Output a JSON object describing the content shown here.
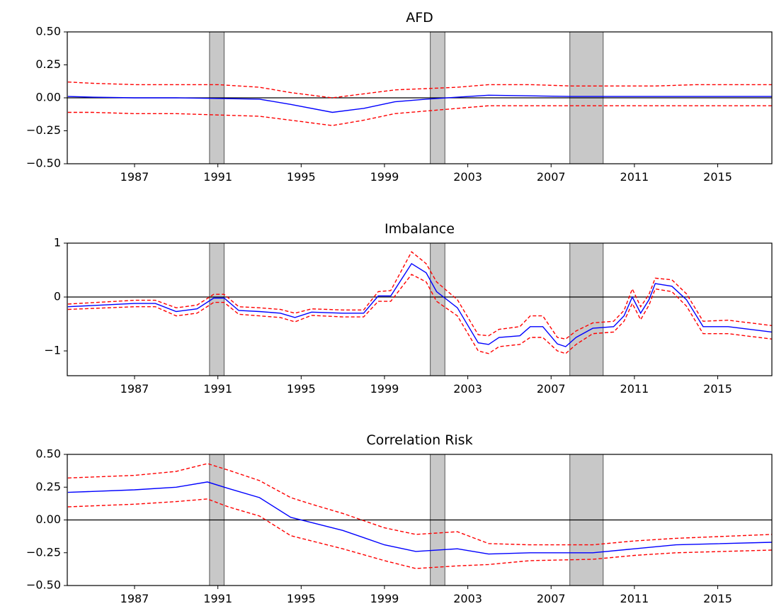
{
  "chart_data": [
    {
      "type": "line",
      "title": "AFD",
      "x": [
        1983.8,
        1985,
        1987,
        1989,
        1991,
        1993,
        1994.5,
        1996.5,
        1998,
        1999.5,
        2001,
        2002.5,
        2004,
        2006,
        2008,
        2010,
        2012,
        2014,
        2016,
        2017.6
      ],
      "series": [
        {
          "color": "#0000ff",
          "dashed": false,
          "values": [
            0.01,
            0.005,
            0,
            0,
            -0.005,
            -0.01,
            -0.05,
            -0.11,
            -0.08,
            -0.03,
            -0.01,
            0.005,
            0.02,
            0.015,
            0.01,
            0.01,
            0.01,
            0.01,
            0.01,
            0.01
          ]
        },
        {
          "color": "#ff0000",
          "dashed": true,
          "values": [
            0.12,
            0.11,
            0.1,
            0.1,
            0.1,
            0.08,
            0.04,
            0.0,
            0.03,
            0.06,
            0.07,
            0.08,
            0.1,
            0.1,
            0.09,
            0.09,
            0.09,
            0.1,
            0.1,
            0.1
          ]
        },
        {
          "color": "#ff0000",
          "dashed": true,
          "values": [
            -0.11,
            -0.11,
            -0.12,
            -0.12,
            -0.13,
            -0.14,
            -0.17,
            -0.21,
            -0.17,
            -0.12,
            -0.1,
            -0.08,
            -0.06,
            -0.06,
            -0.06,
            -0.06,
            -0.06,
            -0.06,
            -0.06,
            -0.06
          ]
        }
      ],
      "shaded": [
        [
          1990.6,
          1991.3
        ],
        [
          2001.2,
          2001.9
        ],
        [
          2007.9,
          2009.5
        ]
      ],
      "shade_color": "#c8c8c8",
      "hline": 0,
      "xlim": [
        1983.77,
        2017.6
      ],
      "xticks": [
        1987,
        1991,
        1995,
        1999,
        2003,
        2007,
        2011,
        2015
      ],
      "ylim": [
        -0.5,
        0.5
      ],
      "yticks": [
        {
          "value": -0.5,
          "label": "−0.50"
        },
        {
          "value": -0.25,
          "label": "−0.25"
        },
        {
          "value": 0,
          "label": "0.00"
        },
        {
          "value": 0.25,
          "label": "0.25"
        },
        {
          "value": 0.5,
          "label": "0.50"
        }
      ]
    },
    {
      "type": "line",
      "title": "Imbalance",
      "x": [
        1983.8,
        1987,
        1988,
        1989,
        1990,
        1990.8,
        1991.3,
        1992,
        1993,
        1994,
        1994.7,
        1995.5,
        1997,
        1998,
        1998.7,
        1999.3,
        2000.3,
        2001,
        2001.5,
        2002.5,
        2003.5,
        2004,
        2004.5,
        2005.5,
        2006,
        2006.6,
        2007.3,
        2007.7,
        2008.2,
        2009,
        2010,
        2010.5,
        2010.9,
        2011.3,
        2011.7,
        2012,
        2012.8,
        2013.5,
        2014.3,
        2015.5,
        2017.6
      ],
      "series": [
        {
          "color": "#0000ff",
          "dashed": false,
          "values": [
            -0.18,
            -0.12,
            -0.12,
            -0.27,
            -0.22,
            -0.02,
            -0.02,
            -0.25,
            -0.27,
            -0.3,
            -0.38,
            -0.28,
            -0.3,
            -0.3,
            0.02,
            0.02,
            0.62,
            0.45,
            0.1,
            -0.2,
            -0.85,
            -0.88,
            -0.75,
            -0.72,
            -0.55,
            -0.55,
            -0.87,
            -0.92,
            -0.75,
            -0.58,
            -0.55,
            -0.35,
            0.0,
            -0.3,
            -0.05,
            0.25,
            0.2,
            -0.05,
            -0.55,
            -0.55,
            -0.65
          ]
        },
        {
          "color": "#ff0000",
          "dashed": true,
          "values": [
            -0.13,
            -0.06,
            -0.06,
            -0.2,
            -0.15,
            0.05,
            0.05,
            -0.18,
            -0.2,
            -0.23,
            -0.3,
            -0.22,
            -0.24,
            -0.24,
            0.1,
            0.12,
            0.84,
            0.62,
            0.28,
            -0.05,
            -0.7,
            -0.72,
            -0.6,
            -0.55,
            -0.35,
            -0.35,
            -0.75,
            -0.78,
            -0.63,
            -0.48,
            -0.45,
            -0.25,
            0.15,
            -0.18,
            0.05,
            0.35,
            0.32,
            0.06,
            -0.45,
            -0.43,
            -0.53
          ]
        },
        {
          "color": "#ff0000",
          "dashed": true,
          "values": [
            -0.23,
            -0.18,
            -0.18,
            -0.35,
            -0.3,
            -0.1,
            -0.1,
            -0.32,
            -0.35,
            -0.38,
            -0.46,
            -0.34,
            -0.37,
            -0.37,
            -0.08,
            -0.08,
            0.42,
            0.28,
            -0.08,
            -0.35,
            -1.0,
            -1.05,
            -0.92,
            -0.88,
            -0.75,
            -0.75,
            -1.0,
            -1.05,
            -0.88,
            -0.68,
            -0.65,
            -0.45,
            -0.12,
            -0.42,
            -0.15,
            0.15,
            0.1,
            -0.17,
            -0.68,
            -0.68,
            -0.78
          ]
        }
      ],
      "shaded": [
        [
          1990.6,
          1991.3
        ],
        [
          2001.2,
          2001.9
        ],
        [
          2007.9,
          2009.5
        ]
      ],
      "shade_color": "#c8c8c8",
      "hline": 0,
      "xlim": [
        1983.77,
        2017.6
      ],
      "xticks": [
        1987,
        1991,
        1995,
        1999,
        2003,
        2007,
        2011,
        2015
      ],
      "ylim": [
        -1.46,
        1
      ],
      "yticks": [
        {
          "value": -1,
          "label": "−1"
        },
        0,
        1
      ]
    },
    {
      "type": "line",
      "title": "Correlation Risk",
      "x": [
        1983.8,
        1987,
        1989,
        1990.5,
        1991.5,
        1993,
        1994.5,
        1995.5,
        1997,
        1999,
        2000.5,
        2002.5,
        2004,
        2006,
        2009,
        2011,
        2013,
        2017.6
      ],
      "series": [
        {
          "color": "#0000ff",
          "dashed": false,
          "values": [
            0.21,
            0.23,
            0.25,
            0.29,
            0.24,
            0.17,
            0.02,
            -0.02,
            -0.08,
            -0.19,
            -0.24,
            -0.22,
            -0.26,
            -0.25,
            -0.25,
            -0.22,
            -0.19,
            -0.17
          ]
        },
        {
          "color": "#ff0000",
          "dashed": true,
          "values": [
            0.32,
            0.34,
            0.37,
            0.43,
            0.38,
            0.3,
            0.17,
            0.12,
            0.05,
            -0.06,
            -0.11,
            -0.09,
            -0.18,
            -0.19,
            -0.19,
            -0.16,
            -0.14,
            -0.11
          ]
        },
        {
          "color": "#ff0000",
          "dashed": true,
          "values": [
            0.1,
            0.12,
            0.14,
            0.16,
            0.1,
            0.03,
            -0.12,
            -0.16,
            -0.22,
            -0.31,
            -0.37,
            -0.35,
            -0.34,
            -0.31,
            -0.3,
            -0.27,
            -0.25,
            -0.23
          ]
        }
      ],
      "shaded": [
        [
          1990.6,
          1991.3
        ],
        [
          2001.2,
          2001.9
        ],
        [
          2007.9,
          2009.5
        ]
      ],
      "shade_color": "#c8c8c8",
      "hline": 0,
      "xlim": [
        1983.77,
        2017.6
      ],
      "xticks": [
        1987,
        1991,
        1995,
        1999,
        2003,
        2007,
        2011,
        2015
      ],
      "ylim": [
        -0.5,
        0.5
      ],
      "yticks": [
        {
          "value": -0.5,
          "label": "−0.50"
        },
        {
          "value": -0.25,
          "label": "−0.25"
        },
        {
          "value": 0,
          "label": "0.00"
        },
        {
          "value": 0.25,
          "label": "0.25"
        },
        {
          "value": 0.5,
          "label": "0.50"
        }
      ]
    }
  ]
}
